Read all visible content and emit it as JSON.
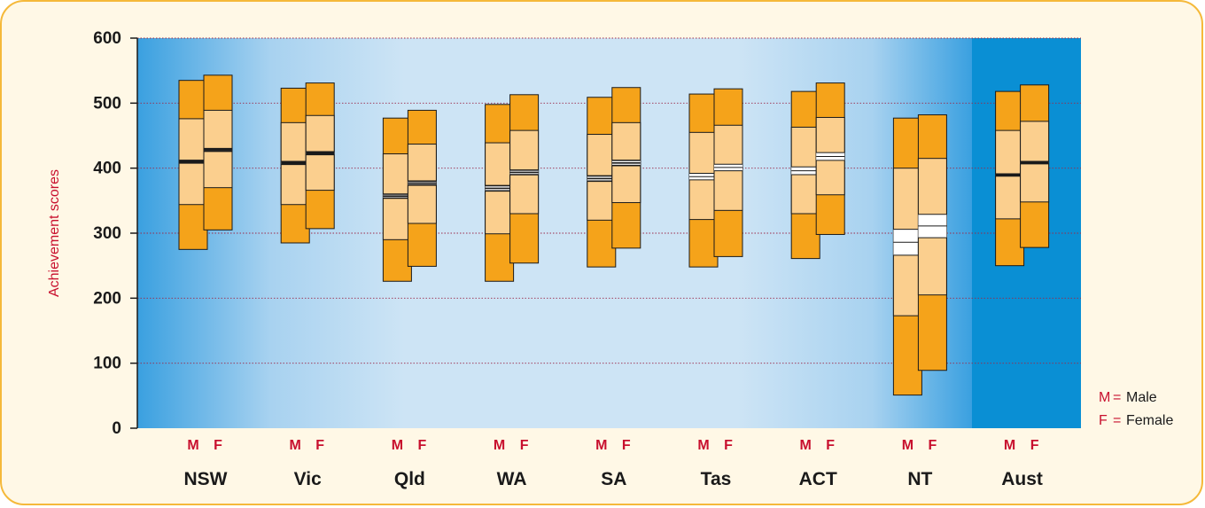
{
  "chart_data": {
    "type": "box",
    "ylabel": "Achievement scores",
    "ylim": [
      0,
      600
    ],
    "yticks": [
      0,
      100,
      200,
      300,
      400,
      500,
      600
    ],
    "grid": true,
    "sex_labels": [
      "M",
      "F"
    ],
    "legend": {
      "placement": "bottom-right",
      "items": [
        {
          "key": "M",
          "label": "Male"
        },
        {
          "key": "F",
          "label": "Female"
        }
      ]
    },
    "colors": {
      "accent": "#c8102e",
      "band_outer": "#f5a31a",
      "band_inner": "#fbcf8e",
      "ci": "#ffffff",
      "frame": "#f5b93a",
      "panel_bg": "#fff8e6",
      "highlight": "#0a8fd4",
      "plot_light": "#cce3f5",
      "plot_dark": "#2f9be0"
    },
    "categories": [
      "NSW",
      "Vic",
      "Qld",
      "WA",
      "SA",
      "Tas",
      "ACT",
      "NT",
      "Aust"
    ],
    "highlight_category": "Aust",
    "series": [
      {
        "name": "Male",
        "key": "M",
        "boxes": [
          {
            "p5": 275,
            "p25": 344,
            "ci_low": 408,
            "ci_high": 412,
            "p75": 476,
            "p95": 535
          },
          {
            "p5": 285,
            "p25": 344,
            "ci_low": 406,
            "ci_high": 410,
            "p75": 470,
            "p95": 523
          },
          {
            "p5": 226,
            "p25": 290,
            "ci_low": 354,
            "ci_high": 360,
            "p75": 422,
            "p95": 477
          },
          {
            "p5": 226,
            "p25": 299,
            "ci_low": 365,
            "ci_high": 373,
            "p75": 439,
            "p95": 498
          },
          {
            "p5": 248,
            "p25": 320,
            "ci_low": 380,
            "ci_high": 388,
            "p75": 452,
            "p95": 509
          },
          {
            "p5": 248,
            "p25": 321,
            "ci_low": 382,
            "ci_high": 392,
            "p75": 455,
            "p95": 514
          },
          {
            "p5": 261,
            "p25": 330,
            "ci_low": 390,
            "ci_high": 402,
            "p75": 463,
            "p95": 518
          },
          {
            "p5": 51,
            "p25": 173,
            "ci_low": 266,
            "ci_high": 306,
            "p75": 400,
            "p95": 477
          },
          {
            "p5": 250,
            "p25": 322,
            "ci_low": 388,
            "ci_high": 391,
            "p75": 458,
            "p95": 518
          }
        ]
      },
      {
        "name": "Female",
        "key": "F",
        "boxes": [
          {
            "p5": 305,
            "p25": 370,
            "ci_low": 426,
            "ci_high": 430,
            "p75": 489,
            "p95": 543
          },
          {
            "p5": 307,
            "p25": 366,
            "ci_low": 421,
            "ci_high": 425,
            "p75": 481,
            "p95": 531
          },
          {
            "p5": 249,
            "p25": 315,
            "ci_low": 374,
            "ci_high": 380,
            "p75": 437,
            "p95": 489
          },
          {
            "p5": 254,
            "p25": 330,
            "ci_low": 390,
            "ci_high": 397,
            "p75": 458,
            "p95": 513
          },
          {
            "p5": 277,
            "p25": 347,
            "ci_low": 404,
            "ci_high": 412,
            "p75": 470,
            "p95": 524
          },
          {
            "p5": 264,
            "p25": 335,
            "ci_low": 396,
            "ci_high": 406,
            "p75": 466,
            "p95": 522
          },
          {
            "p5": 298,
            "p25": 359,
            "ci_low": 412,
            "ci_high": 424,
            "p75": 478,
            "p95": 531
          },
          {
            "p5": 89,
            "p25": 205,
            "ci_low": 293,
            "ci_high": 329,
            "p75": 415,
            "p95": 482
          },
          {
            "p5": 278,
            "p25": 348,
            "ci_low": 407,
            "ci_high": 410,
            "p75": 472,
            "p95": 528
          }
        ]
      }
    ]
  }
}
